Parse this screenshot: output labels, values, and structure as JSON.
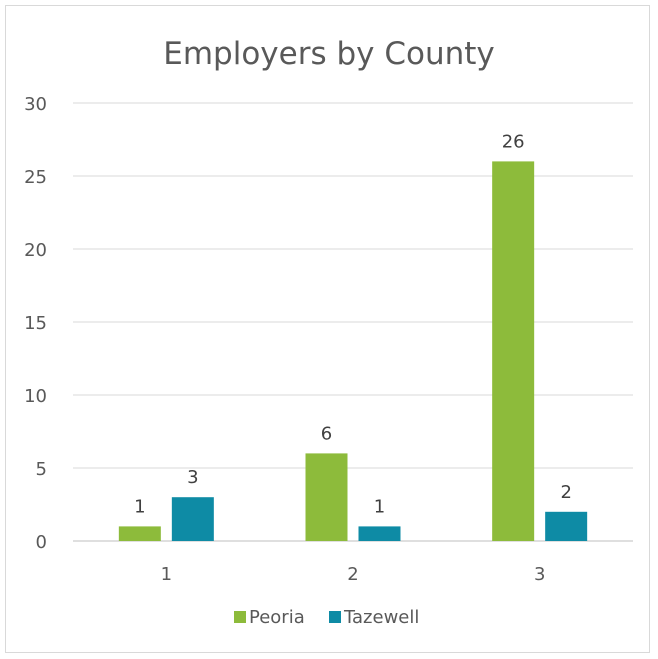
{
  "chart_data": {
    "type": "bar",
    "title": "Employers by County",
    "xlabel": "",
    "ylabel": "",
    "categories": [
      "1",
      "2",
      "3"
    ],
    "series": [
      {
        "name": "Peoria",
        "values": [
          1,
          6,
          26
        ],
        "color": "#8dbb3b"
      },
      {
        "name": "Tazewell",
        "values": [
          3,
          1,
          2
        ],
        "color": "#0e8ba5"
      }
    ],
    "ylim": [
      0,
      30
    ],
    "yticks": [
      "0",
      "5",
      "10",
      "15",
      "20",
      "25",
      "30"
    ],
    "data_labels": [
      [
        "1",
        "6",
        "26"
      ],
      [
        "3",
        "1",
        "2"
      ]
    ],
    "grid": true,
    "legend": "bottom"
  }
}
